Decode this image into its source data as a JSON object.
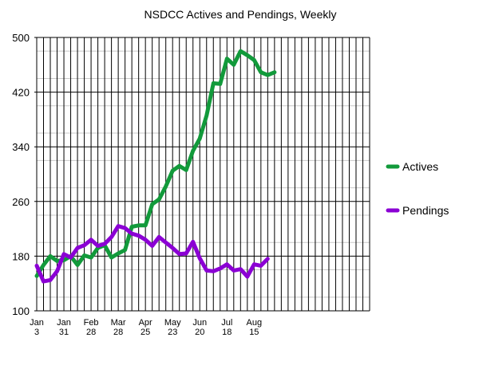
{
  "chart_data": {
    "type": "line",
    "title": "NSDCC Actives and Pendings, Weekly",
    "xlabel": "",
    "ylabel": "",
    "ylim": [
      100,
      500
    ],
    "y_ticks": [
      100,
      180,
      260,
      340,
      420,
      500
    ],
    "x_tick_labels": [
      {
        "line1": "Jan",
        "line2": "3"
      },
      {
        "line1": "Jan",
        "line2": "31"
      },
      {
        "line1": "Feb",
        "line2": "28"
      },
      {
        "line1": "Mar",
        "line2": "28"
      },
      {
        "line1": "Apr",
        "line2": "25"
      },
      {
        "line1": "May",
        "line2": "23"
      },
      {
        "line1": "Jun",
        "line2": "20"
      },
      {
        "line1": "Jul",
        "line2": "18"
      },
      {
        "line1": "Aug",
        "line2": "15"
      }
    ],
    "weeks_total": 49,
    "grid": true,
    "legend_position": "right",
    "series": [
      {
        "name": "Actives",
        "color": "#129a3b",
        "values": [
          151,
          167,
          180,
          173,
          174,
          180,
          167,
          181,
          178,
          192,
          196,
          178,
          184,
          189,
          223,
          225,
          225,
          256,
          263,
          282,
          305,
          312,
          306,
          334,
          352,
          386,
          433,
          432,
          469,
          460,
          480,
          474,
          467,
          449,
          445,
          449
        ]
      },
      {
        "name": "Pendings",
        "color": "#8b00d4",
        "values": [
          166,
          143,
          145,
          158,
          183,
          178,
          192,
          196,
          204,
          195,
          198,
          208,
          224,
          221,
          213,
          210,
          204,
          195,
          208,
          200,
          192,
          183,
          184,
          201,
          177,
          159,
          158,
          162,
          168,
          159,
          161,
          150,
          168,
          166,
          176
        ]
      }
    ]
  }
}
